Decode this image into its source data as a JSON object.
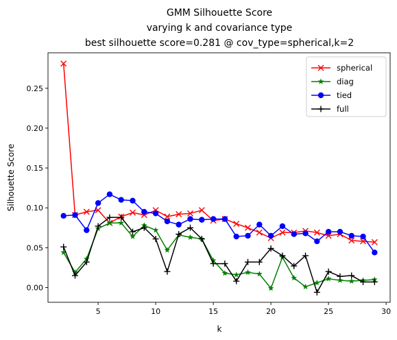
{
  "chart_data": {
    "type": "line",
    "title_lines": [
      "GMM Silhouette Score",
      "varying k and covariance type",
      "best silhouette score=0.281 @ cov_type=spherical,k=2"
    ],
    "xlabel": "k",
    "ylabel": "Silhouette Score",
    "xlim": [
      0.65,
      30.35
    ],
    "ylim": [
      -0.0185,
      0.2945
    ],
    "xticks": [
      5,
      10,
      15,
      20,
      25,
      30
    ],
    "yticks": [
      0.0,
      0.05,
      0.1,
      0.15,
      0.2,
      0.25
    ],
    "grid": false,
    "legend_position": "top-right",
    "x": [
      2,
      3,
      4,
      5,
      6,
      7,
      8,
      9,
      10,
      11,
      12,
      13,
      14,
      15,
      16,
      17,
      18,
      19,
      20,
      21,
      22,
      23,
      24,
      25,
      26,
      27,
      28,
      29
    ],
    "series": [
      {
        "name": "spherical",
        "color": "#ff0000",
        "marker": "x",
        "values": [
          0.281,
          0.091,
          0.095,
          0.097,
          0.081,
          0.089,
          0.094,
          0.091,
          0.097,
          0.089,
          0.092,
          0.093,
          0.097,
          0.084,
          0.086,
          0.08,
          0.075,
          0.069,
          0.062,
          0.069,
          0.069,
          0.071,
          0.069,
          0.065,
          0.067,
          0.059,
          0.058,
          0.057
        ]
      },
      {
        "name": "diag",
        "color": "#008000",
        "marker": "star",
        "values": [
          0.044,
          0.019,
          0.036,
          0.074,
          0.081,
          0.081,
          0.064,
          0.078,
          0.072,
          0.047,
          0.066,
          0.063,
          0.061,
          0.034,
          0.018,
          0.016,
          0.019,
          0.017,
          -0.001,
          0.038,
          0.012,
          0.001,
          0.006,
          0.011,
          0.009,
          0.008,
          0.009,
          0.01
        ]
      },
      {
        "name": "tied",
        "color": "#0000ff",
        "marker": "circle",
        "values": [
          0.09,
          0.091,
          0.072,
          0.106,
          0.117,
          0.11,
          0.109,
          0.095,
          0.093,
          0.083,
          0.079,
          0.086,
          0.085,
          0.086,
          0.086,
          0.064,
          0.065,
          0.079,
          0.065,
          0.077,
          0.067,
          0.068,
          0.058,
          0.07,
          0.07,
          0.065,
          0.064,
          0.044
        ]
      },
      {
        "name": "full",
        "color": "#000000",
        "marker": "plus",
        "values": [
          0.051,
          0.015,
          0.032,
          0.077,
          0.088,
          0.088,
          0.07,
          0.075,
          0.061,
          0.02,
          0.067,
          0.075,
          0.061,
          0.03,
          0.03,
          0.008,
          0.032,
          0.032,
          0.049,
          0.04,
          0.027,
          0.04,
          -0.006,
          0.02,
          0.014,
          0.015,
          0.007,
          0.007
        ]
      }
    ]
  }
}
